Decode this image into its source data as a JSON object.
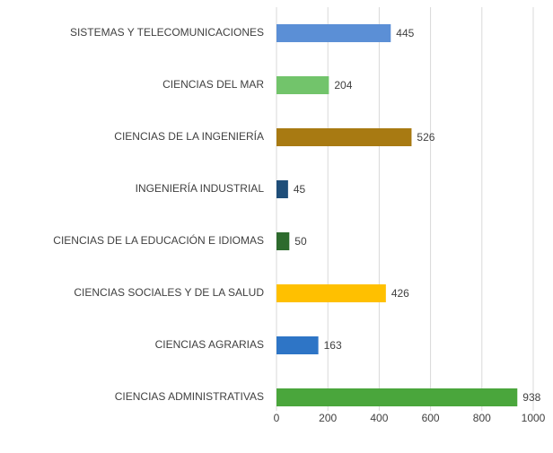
{
  "chart_data": {
    "type": "bar",
    "orientation": "horizontal",
    "categories": [
      "SISTEMAS Y TELECOMUNICACIONES",
      "CIENCIAS DEL MAR",
      "CIENCIAS DE LA INGENIERÍA",
      "INGENIERÍA INDUSTRIAL",
      "CIENCIAS DE LA EDUCACIÓN E IDIOMAS",
      "CIENCIAS SOCIALES Y DE LA SALUD",
      "CIENCIAS AGRARIAS",
      "CIENCIAS ADMINISTRATIVAS"
    ],
    "values": [
      445,
      204,
      526,
      45,
      50,
      426,
      163,
      938
    ],
    "colors": [
      "#5b8fd6",
      "#72c46b",
      "#a87a12",
      "#1f4e79",
      "#2e6b2e",
      "#ffc000",
      "#2e75c6",
      "#4aa63c"
    ],
    "xlim": [
      0,
      1000
    ],
    "xticks": [
      0,
      200,
      400,
      600,
      800,
      1000
    ],
    "grid": true
  }
}
